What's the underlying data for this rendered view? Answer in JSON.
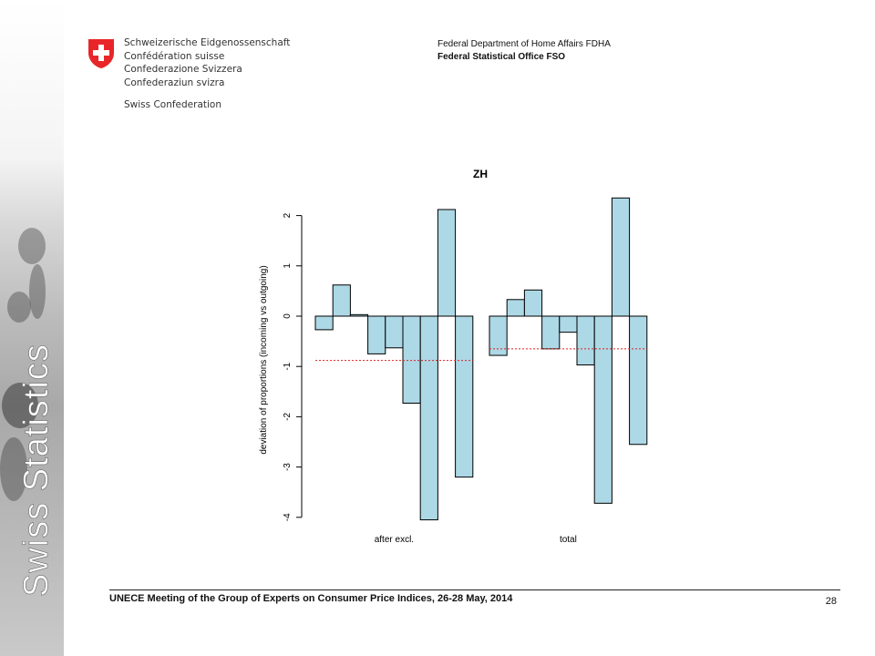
{
  "header": {
    "confederation_lines": [
      "Schweizerische Eidgenossenschaft",
      "Confédération suisse",
      "Confederazione Svizzera",
      "Confederaziun svizra"
    ],
    "confederation_short": "Swiss Confederation",
    "department": "Federal Department of Home Affairs FDHA",
    "office": "Federal Statistical Office FSO"
  },
  "side_band": {
    "label": "Swiss Statistics"
  },
  "footer": {
    "meeting": "UNECE Meeting of the Group of Experts on Consumer Price Indices, 26-28 May, 2014",
    "page_number": "28"
  },
  "colors": {
    "bar_fill": "#add8e6",
    "bar_stroke": "#000000",
    "reference_line": "#e02020",
    "flag_red": "#e8262a"
  },
  "chart_data": {
    "type": "bar",
    "title": "ZH",
    "ylabel": "deviation of proportions (incoming vs outgoing)",
    "xlabel": "",
    "ylim": [
      -4,
      2
    ],
    "yticks": [
      2,
      1,
      0,
      -1,
      -2,
      -3,
      -4
    ],
    "grid": false,
    "groups": [
      {
        "name": "after excl.",
        "values": [
          -0.27,
          0.62,
          0.03,
          -0.75,
          -0.63,
          -1.73,
          -4.05,
          2.12,
          -3.2
        ],
        "reference_mean": -0.88
      },
      {
        "name": "total",
        "values": [
          -0.78,
          0.33,
          0.52,
          -0.65,
          -0.32,
          -0.97,
          -3.72,
          2.35,
          -2.55
        ],
        "reference_mean": -0.65
      }
    ]
  }
}
